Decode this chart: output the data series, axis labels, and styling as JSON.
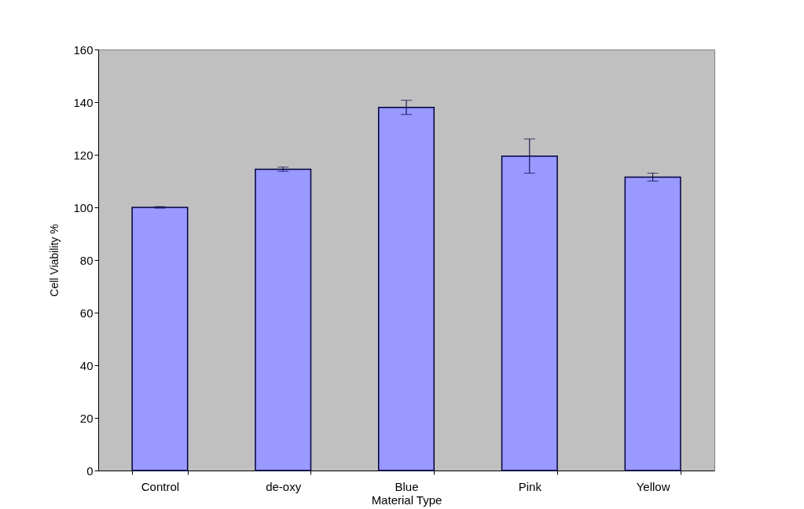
{
  "chart_data": {
    "type": "bar",
    "xlabel": "Material Type",
    "ylabel": "Cell Viability %",
    "categories": [
      "Control",
      "de-oxy",
      "Blue",
      "Pink",
      "Yellow"
    ],
    "values": [
      100,
      114.5,
      138,
      119.5,
      111.5
    ],
    "errors": [
      0.3,
      0.8,
      2.7,
      6.5,
      1.5
    ],
    "color": "#9999ff",
    "ylim": [
      0,
      160
    ],
    "yticks": [
      0,
      20,
      40,
      60,
      80,
      100,
      120,
      140,
      160
    ],
    "grid": false
  }
}
